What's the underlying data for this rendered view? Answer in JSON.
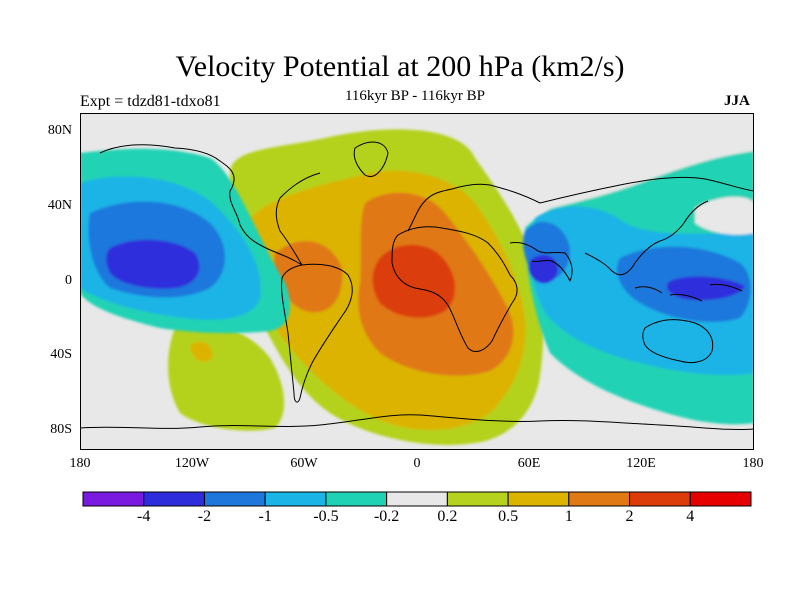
{
  "title": "Velocity Potential at 200 hPa (km2/s)",
  "subtitle": "116kyr BP - 116kyr BP",
  "left_label": "Expt = tdzd81-tdxo81",
  "right_label": "JJA",
  "axes": {
    "y_ticks": [
      "80N",
      "40N",
      "0",
      "40S",
      "80S"
    ],
    "x_ticks": [
      "180",
      "120W",
      "60W",
      "0",
      "60E",
      "120E",
      "180"
    ]
  },
  "colorbar": {
    "labels": [
      "-4",
      "-2",
      "-1",
      "-0.5",
      "-0.2",
      "0.2",
      "0.5",
      "1",
      "2",
      "4"
    ],
    "colors": [
      "#7a19e0",
      "#2d2ddc",
      "#1e78dc",
      "#1ab4e6",
      "#20d2b4",
      "#e8e8e8",
      "#b4d21e",
      "#dcb400",
      "#e07814",
      "#dc3c0a",
      "#e60000"
    ]
  },
  "colors": {
    "background": "#e8e8e8",
    "coastline": "#000000"
  }
}
